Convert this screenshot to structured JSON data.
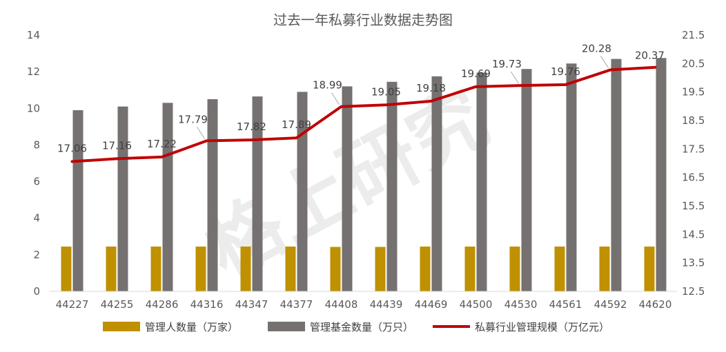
{
  "chart_data": {
    "type": "bar",
    "title": "过去一年私募行业数据走势图",
    "watermark": "格上研究",
    "categories": [
      "44227",
      "44255",
      "44286",
      "44316",
      "44347",
      "44377",
      "44408",
      "44439",
      "44469",
      "44500",
      "44530",
      "44561",
      "44592",
      "44620"
    ],
    "y_left": {
      "min": 0,
      "max": 14,
      "step": 2,
      "ticks": [
        "0",
        "2",
        "4",
        "6",
        "8",
        "10",
        "12",
        "14"
      ]
    },
    "y_right": {
      "min": 12.5,
      "max": 21.5,
      "step": 1,
      "ticks": [
        "12.5",
        "13.5",
        "14.5",
        "15.5",
        "16.5",
        "17.5",
        "18.5",
        "19.5",
        "20.5",
        "21.5"
      ]
    },
    "series": [
      {
        "name": "管理人数量（万家）",
        "kind": "bar",
        "axis": "left",
        "color": "#BF9000",
        "values": [
          2.45,
          2.45,
          2.45,
          2.45,
          2.45,
          2.45,
          2.43,
          2.43,
          2.45,
          2.45,
          2.45,
          2.45,
          2.45,
          2.45
        ]
      },
      {
        "name": "管理基金数量（万只）",
        "kind": "bar",
        "axis": "left",
        "color": "#767171",
        "values": [
          9.9,
          10.1,
          10.3,
          10.5,
          10.65,
          10.9,
          11.2,
          11.45,
          11.75,
          11.95,
          12.15,
          12.45,
          12.7,
          12.75
        ]
      },
      {
        "name": "私募行业管理规模（万亿元）",
        "kind": "line",
        "axis": "right",
        "color": "#C00000",
        "values": [
          17.06,
          17.16,
          17.22,
          17.79,
          17.82,
          17.89,
          18.99,
          19.05,
          19.18,
          19.69,
          19.73,
          19.76,
          20.28,
          20.37
        ],
        "labels": [
          "17.06",
          "17.16",
          "17.22",
          "17.79",
          "17.82",
          "17.89",
          "18.99",
          "19.05",
          "19.18",
          "19.69",
          "19.73",
          "19.76",
          "20.28",
          "20.37"
        ]
      }
    ],
    "legend_position": "bottom",
    "grid": false
  }
}
